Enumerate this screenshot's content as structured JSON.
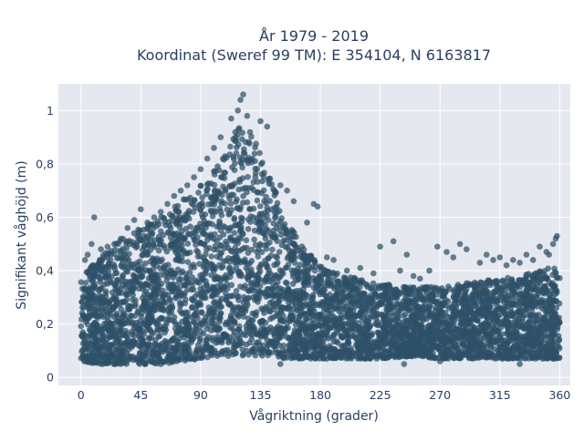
{
  "chart_data": {
    "type": "scatter",
    "title": [
      "År 1979 - 2019",
      "Koordinat (Sweref 99 TM): E 354104, N 6163817"
    ],
    "xlabel": "Vågriktning (grader)",
    "ylabel": "Signifikant våghöjd (m)",
    "xlim": [
      -17,
      368
    ],
    "ylim": [
      -0.03,
      1.1
    ],
    "x_ticks": [
      0,
      45,
      90,
      135,
      180,
      225,
      270,
      315,
      360
    ],
    "y_ticks": [
      0,
      0.2,
      0.4,
      0.6,
      0.8,
      1
    ],
    "y_tick_labels": [
      "0",
      "0,2",
      "0,4",
      "0,6",
      "0,8",
      "1"
    ],
    "grid": true,
    "legend": "none",
    "marker_color": "#2e5168",
    "plot_background": "#e5e8ef",
    "points_note": "dense cloud; representative distribution",
    "envelope": {
      "x": [
        0,
        15,
        30,
        45,
        60,
        75,
        90,
        105,
        115,
        120,
        125,
        135,
        150,
        165,
        180,
        200,
        225,
        250,
        270,
        300,
        330,
        345,
        360
      ],
      "lower": [
        0.06,
        0.05,
        0.05,
        0.05,
        0.05,
        0.06,
        0.07,
        0.08,
        0.08,
        0.08,
        0.08,
        0.08,
        0.07,
        0.07,
        0.07,
        0.07,
        0.07,
        0.08,
        0.07,
        0.07,
        0.07,
        0.07,
        0.07
      ],
      "upper": [
        0.38,
        0.45,
        0.52,
        0.56,
        0.6,
        0.66,
        0.72,
        0.82,
        0.92,
        0.97,
        0.95,
        0.85,
        0.65,
        0.5,
        0.42,
        0.38,
        0.35,
        0.34,
        0.34,
        0.36,
        0.38,
        0.4,
        0.42
      ]
    },
    "outliers": [
      [
        122,
        1.06
      ],
      [
        120,
        1.04
      ],
      [
        118,
        1.0
      ],
      [
        125,
        0.98
      ],
      [
        113,
        0.97
      ],
      [
        135,
        0.96
      ],
      [
        140,
        0.94
      ],
      [
        105,
        0.9
      ],
      [
        100,
        0.86
      ],
      [
        95,
        0.82
      ],
      [
        90,
        0.78
      ],
      [
        85,
        0.75
      ],
      [
        80,
        0.72
      ],
      [
        75,
        0.7
      ],
      [
        70,
        0.68
      ],
      [
        65,
        0.65
      ],
      [
        60,
        0.62
      ],
      [
        55,
        0.6
      ],
      [
        50,
        0.58
      ],
      [
        45,
        0.63
      ],
      [
        40,
        0.59
      ],
      [
        35,
        0.56
      ],
      [
        30,
        0.52
      ],
      [
        25,
        0.5
      ],
      [
        20,
        0.49
      ],
      [
        15,
        0.48
      ],
      [
        10,
        0.6
      ],
      [
        8,
        0.5
      ],
      [
        5,
        0.46
      ],
      [
        3,
        0.44
      ],
      [
        150,
        0.72
      ],
      [
        155,
        0.7
      ],
      [
        160,
        0.66
      ],
      [
        170,
        0.58
      ],
      [
        175,
        0.65
      ],
      [
        178,
        0.64
      ],
      [
        185,
        0.45
      ],
      [
        190,
        0.44
      ],
      [
        200,
        0.4
      ],
      [
        210,
        0.41
      ],
      [
        220,
        0.39
      ],
      [
        225,
        0.49
      ],
      [
        235,
        0.51
      ],
      [
        240,
        0.4
      ],
      [
        245,
        0.46
      ],
      [
        250,
        0.38
      ],
      [
        255,
        0.37
      ],
      [
        262,
        0.4
      ],
      [
        268,
        0.49
      ],
      [
        275,
        0.47
      ],
      [
        280,
        0.45
      ],
      [
        285,
        0.5
      ],
      [
        290,
        0.48
      ],
      [
        300,
        0.43
      ],
      [
        305,
        0.46
      ],
      [
        310,
        0.44
      ],
      [
        315,
        0.45
      ],
      [
        320,
        0.42
      ],
      [
        325,
        0.44
      ],
      [
        330,
        0.43
      ],
      [
        335,
        0.46
      ],
      [
        340,
        0.44
      ],
      [
        345,
        0.49
      ],
      [
        350,
        0.47
      ],
      [
        355,
        0.5
      ],
      [
        358,
        0.53
      ],
      [
        357,
        0.52
      ],
      [
        352,
        0.46
      ],
      [
        238,
        0.08
      ],
      [
        243,
        0.05
      ],
      [
        185,
        0.07
      ],
      [
        150,
        0.05
      ],
      [
        60,
        0.05
      ],
      [
        330,
        0.05
      ],
      [
        270,
        0.06
      ]
    ]
  }
}
